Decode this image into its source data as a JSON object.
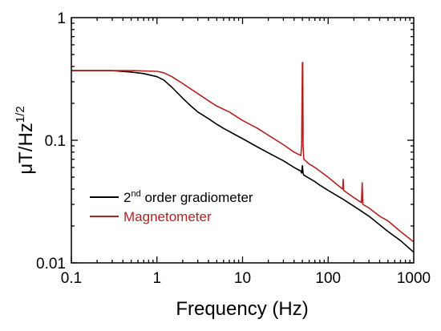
{
  "chart_data": {
    "type": "line",
    "xscale": "log",
    "yscale": "log",
    "xlim": [
      0.1,
      1000
    ],
    "ylim": [
      0.01,
      1
    ],
    "xlabel": "Frequency (Hz)",
    "ylabel": {
      "base": "μT/Hz",
      "sup": "1/2"
    },
    "x_ticks": [
      {
        "value": 0.1,
        "label": "0.1"
      },
      {
        "value": 1,
        "label": "1"
      },
      {
        "value": 10,
        "label": "10"
      },
      {
        "value": 100,
        "label": "100"
      },
      {
        "value": 1000,
        "label": "1000"
      }
    ],
    "y_ticks": [
      {
        "value": 0.01,
        "label": "0.01"
      },
      {
        "value": 0.1,
        "label": "0.1"
      },
      {
        "value": 1,
        "label": "1"
      }
    ],
    "grid": false,
    "legend_position": "bottom-left",
    "series": [
      {
        "name": "2nd order gradiometer",
        "legend_parts": [
          {
            "text": "2"
          },
          {
            "text": "nd",
            "sup": true
          },
          {
            "text": " order gradiometer"
          }
        ],
        "color": "#000000",
        "x": [
          0.1,
          0.2,
          0.3,
          0.5,
          0.7,
          1.0,
          1.2,
          1.5,
          2,
          2.5,
          3,
          4,
          5,
          6,
          7,
          8,
          10,
          15,
          20,
          30,
          40,
          48,
          49,
          50,
          51,
          52,
          60,
          70,
          80,
          100,
          150,
          200,
          300,
          500,
          700,
          1000
        ],
        "values": [
          0.37,
          0.37,
          0.37,
          0.36,
          0.35,
          0.33,
          0.31,
          0.27,
          0.22,
          0.19,
          0.17,
          0.15,
          0.135,
          0.125,
          0.118,
          0.112,
          0.103,
          0.088,
          0.079,
          0.068,
          0.06,
          0.056,
          0.054,
          0.062,
          0.054,
          0.052,
          0.049,
          0.046,
          0.043,
          0.039,
          0.033,
          0.029,
          0.024,
          0.018,
          0.0152,
          0.0122
        ]
      },
      {
        "name": "Magnetometer",
        "legend_parts": [
          {
            "text": "Magnetometer"
          }
        ],
        "color": "#b22222",
        "x": [
          0.1,
          0.3,
          0.5,
          1.0,
          1.2,
          1.5,
          2,
          3,
          4,
          5,
          7,
          10,
          15,
          20,
          30,
          40,
          48,
          49,
          50,
          50.5,
          51,
          52,
          60,
          70,
          80,
          100,
          120,
          148,
          150,
          152,
          200,
          245,
          250,
          255,
          300,
          400,
          500,
          700,
          1000
        ],
        "values": [
          0.37,
          0.37,
          0.37,
          0.365,
          0.355,
          0.33,
          0.29,
          0.24,
          0.21,
          0.19,
          0.17,
          0.145,
          0.125,
          0.11,
          0.092,
          0.08,
          0.075,
          0.09,
          0.43,
          0.43,
          0.09,
          0.07,
          0.064,
          0.06,
          0.056,
          0.05,
          0.045,
          0.04,
          0.048,
          0.039,
          0.034,
          0.031,
          0.045,
          0.03,
          0.028,
          0.024,
          0.022,
          0.018,
          0.0148
        ]
      }
    ]
  }
}
